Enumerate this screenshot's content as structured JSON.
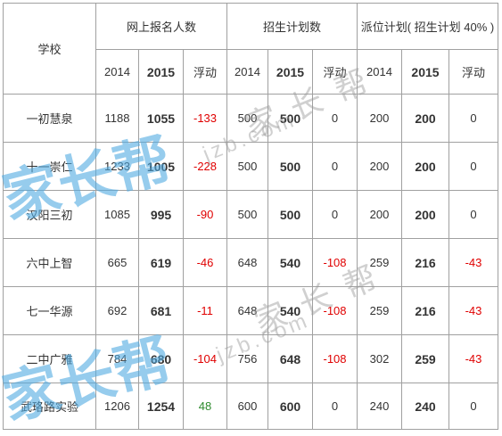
{
  "table": {
    "corner": "学校",
    "groups": [
      "网上报名人数",
      "招生计划数",
      "派位计划( 招生计划 40% )"
    ],
    "subheaders": [
      "2014",
      "2015",
      "浮动"
    ],
    "rows": [
      [
        "一初慧泉",
        1188,
        1055,
        -133,
        500,
        500,
        0,
        200,
        200,
        0
      ],
      [
        "十一崇仁",
        1233,
        1005,
        -228,
        500,
        500,
        0,
        200,
        200,
        0
      ],
      [
        "汉阳三初",
        1085,
        995,
        -90,
        500,
        500,
        0,
        200,
        200,
        0
      ],
      [
        "六中上智",
        665,
        619,
        -46,
        648,
        540,
        -108,
        259,
        216,
        -43
      ],
      [
        "七一华源",
        692,
        681,
        -11,
        648,
        540,
        -108,
        259,
        216,
        -43
      ],
      [
        "二中广雅",
        784,
        680,
        -104,
        756,
        648,
        -108,
        302,
        259,
        -43
      ],
      [
        "武珞路实验",
        1206,
        1254,
        48,
        600,
        600,
        0,
        240,
        240,
        0
      ]
    ],
    "colors": {
      "negative": "#e00000",
      "positive": "#2e8b2e",
      "text": "#333333",
      "border": "#a0a0a0"
    }
  },
  "watermarks": [
    "家长帮",
    "jzb.com",
    "家长帮",
    "家长帮",
    "jzb.com",
    "家长帮"
  ]
}
